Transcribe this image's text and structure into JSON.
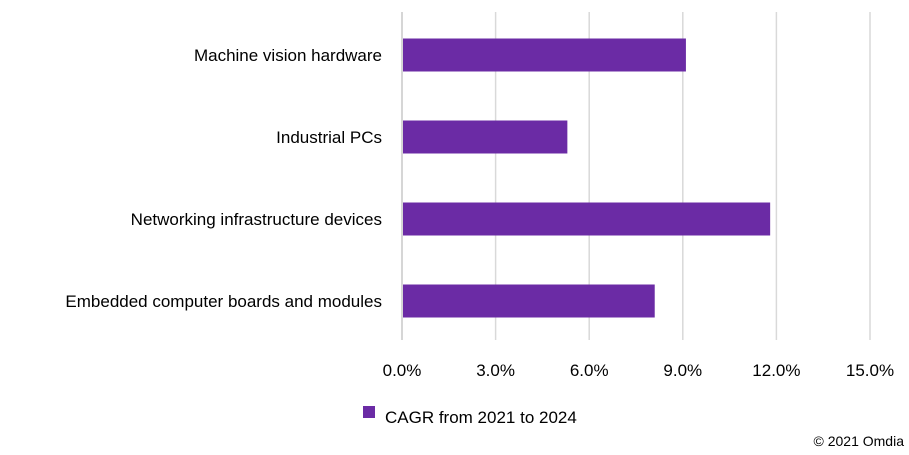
{
  "chart_data": {
    "type": "bar",
    "orientation": "horizontal",
    "title": "",
    "xlabel": "",
    "ylabel": "",
    "categories": [
      "Machine vision hardware",
      "Industrial PCs",
      "Networking infrastructure devices",
      "Embedded computer boards and modules"
    ],
    "series": [
      {
        "name": "CAGR from 2021 to 2024",
        "color": "#6b2ba5",
        "values": [
          9.1,
          5.3,
          11.8,
          8.1
        ]
      }
    ],
    "xlim": [
      0,
      15
    ],
    "x_ticks": [
      0,
      3,
      6,
      9,
      12,
      15
    ],
    "x_tick_labels": [
      "0.0%",
      "3.0%",
      "6.0%",
      "9.0%",
      "12.0%",
      "15.0%"
    ],
    "grid": true,
    "legend_position": "bottom",
    "credit": "© 2021 Omdia"
  }
}
